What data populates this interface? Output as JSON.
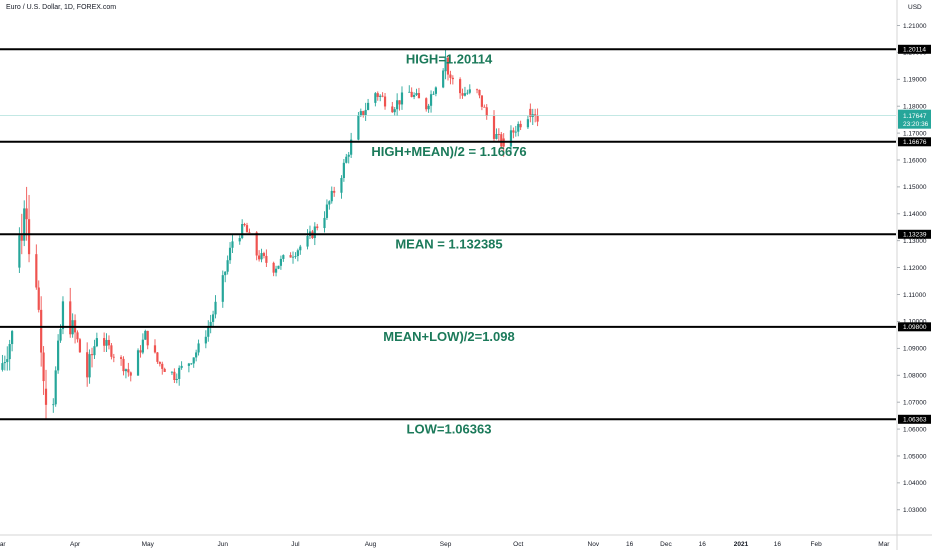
{
  "chart_data": {
    "type": "candlestick",
    "title": "Euro / U.S. Dollar, 1D, FOREX.com",
    "currency": "USD",
    "ylim": [
      1.021,
      1.215
    ],
    "y_ticks": [
      1.21,
      1.2,
      1.19,
      1.18,
      1.17,
      1.16,
      1.15,
      1.14,
      1.13,
      1.12,
      1.11,
      1.1,
      1.09,
      1.08,
      1.07,
      1.06,
      1.05,
      1.04,
      1.03
    ],
    "y_tick_labels": [
      "1.21000",
      "1.20000",
      "1.19000",
      "1.18000",
      "1.17000",
      "1.16000",
      "1.15000",
      "1.14000",
      "1.13000",
      "1.12000",
      "1.11000",
      "1.10000",
      "1.09000",
      "1.08000",
      "1.07000",
      "1.06000",
      "1.05000",
      "1.04000",
      "1.03000"
    ],
    "x_range": [
      "2020-03-01",
      "2021-03-06"
    ],
    "x_ticks": [
      {
        "date": "2020-03-01",
        "label": "Mar"
      },
      {
        "date": "2020-04-01",
        "label": "Apr"
      },
      {
        "date": "2020-05-01",
        "label": "May"
      },
      {
        "date": "2020-06-01",
        "label": "Jun"
      },
      {
        "date": "2020-07-01",
        "label": "Jul"
      },
      {
        "date": "2020-08-01",
        "label": "Aug"
      },
      {
        "date": "2020-09-01",
        "label": "Sep"
      },
      {
        "date": "2020-10-01",
        "label": "Oct"
      },
      {
        "date": "2020-11-01",
        "label": "Nov"
      },
      {
        "date": "2020-11-16",
        "label": "16"
      },
      {
        "date": "2020-12-01",
        "label": "Dec"
      },
      {
        "date": "2020-12-16",
        "label": "16"
      },
      {
        "date": "2021-01-01",
        "label": "2021",
        "bold": true
      },
      {
        "date": "2021-01-16",
        "label": "16"
      },
      {
        "date": "2021-02-01",
        "label": "Feb"
      },
      {
        "date": "2021-03-01",
        "label": "Mar"
      }
    ],
    "price_path": [
      [
        "2020-03-01",
        1.082
      ],
      [
        "2020-03-06",
        1.095
      ],
      [
        "2020-03-09",
        1.12
      ],
      [
        "2020-03-12",
        1.125
      ],
      [
        "2020-03-16",
        1.115
      ],
      [
        "2020-03-20",
        1.07
      ],
      [
        "2020-03-23",
        1.072
      ],
      [
        "2020-03-27",
        1.105
      ],
      [
        "2020-04-01",
        1.095
      ],
      [
        "2020-04-06",
        1.08
      ],
      [
        "2020-04-10",
        1.095
      ],
      [
        "2020-04-15",
        1.09
      ],
      [
        "2020-04-20",
        1.085
      ],
      [
        "2020-04-24",
        1.08
      ],
      [
        "2020-04-30",
        1.095
      ],
      [
        "2020-05-05",
        1.085
      ],
      [
        "2020-05-12",
        1.08
      ],
      [
        "2020-05-18",
        1.085
      ],
      [
        "2020-05-22",
        1.09
      ],
      [
        "2020-05-27",
        1.1
      ],
      [
        "2020-06-01",
        1.115
      ],
      [
        "2020-06-05",
        1.13
      ],
      [
        "2020-06-10",
        1.135
      ],
      [
        "2020-06-15",
        1.125
      ],
      [
        "2020-06-22",
        1.12
      ],
      [
        "2020-06-29",
        1.125
      ],
      [
        "2020-07-06",
        1.13
      ],
      [
        "2020-07-13",
        1.14
      ],
      [
        "2020-07-20",
        1.155
      ],
      [
        "2020-07-27",
        1.175
      ],
      [
        "2020-08-03",
        1.185
      ],
      [
        "2020-08-10",
        1.18
      ],
      [
        "2020-08-17",
        1.185
      ],
      [
        "2020-08-24",
        1.18
      ],
      [
        "2020-08-31",
        1.195
      ],
      [
        "2020-09-07",
        1.185
      ],
      [
        "2020-09-14",
        1.185
      ],
      [
        "2020-09-21",
        1.17
      ],
      [
        "2020-09-25",
        1.165
      ],
      [
        "2020-09-30",
        1.172
      ],
      [
        "2020-10-06",
        1.178
      ],
      [
        "2020-10-09",
        1.1765
      ]
    ],
    "candles": [
      {
        "date": "2020-03-09",
        "open": 1.12,
        "high": 1.135,
        "low": 1.118,
        "close": 1.132
      },
      {
        "date": "2020-03-10",
        "open": 1.132,
        "high": 1.14,
        "low": 1.125,
        "close": 1.13
      },
      {
        "date": "2020-03-11",
        "open": 1.13,
        "high": 1.145,
        "low": 1.128,
        "close": 1.142
      },
      {
        "date": "2020-03-12",
        "open": 1.142,
        "high": 1.15,
        "low": 1.13,
        "close": 1.138
      },
      {
        "date": "2020-03-13",
        "open": 1.138,
        "high": 1.147,
        "low": 1.122,
        "close": 1.125
      },
      {
        "date": "2020-03-20",
        "open": 1.075,
        "high": 1.082,
        "low": 1.0636,
        "close": 1.069
      },
      {
        "date": "2020-09-01",
        "open": 1.193,
        "high": 1.2011,
        "low": 1.19,
        "close": 1.198
      },
      {
        "date": "2020-09-25",
        "open": 1.168,
        "high": 1.17,
        "low": 1.1612,
        "close": 1.165
      },
      {
        "date": "2020-10-06",
        "open": 1.179,
        "high": 1.181,
        "low": 1.174,
        "close": 1.176
      },
      {
        "date": "2020-10-07",
        "open": 1.176,
        "high": 1.179,
        "low": 1.173,
        "close": 1.177
      },
      {
        "date": "2020-10-08",
        "open": 1.177,
        "high": 1.179,
        "low": 1.174,
        "close": 1.1765
      }
    ],
    "levels": [
      {
        "value": 1.20114,
        "tag": "1.20114",
        "text": "HIGH=1.20114"
      },
      {
        "value": 1.16676,
        "tag": "1.16676",
        "text": "HIGH+MEAN)/2 = 1.16676"
      },
      {
        "value": 1.13239,
        "tag": "1.13239",
        "text": "MEAN = 1.132385"
      },
      {
        "value": 1.098,
        "tag": "1.09800",
        "text": "MEAN+LOW)/2=1.098"
      },
      {
        "value": 1.06363,
        "tag": "1.06363",
        "text": "LOW=1.06363"
      }
    ],
    "last_price": {
      "value": 1.17647,
      "tag": "1.17647",
      "countdown": "23:20:36"
    },
    "colors": {
      "up": "#26a69a",
      "down": "#ef5350",
      "level_line": "#000000",
      "level_text": "#1b7a5a",
      "axis_text": "#131722",
      "price_tag": "#26a69a",
      "last_price_line": "#9fdbd4"
    },
    "grid": false
  }
}
